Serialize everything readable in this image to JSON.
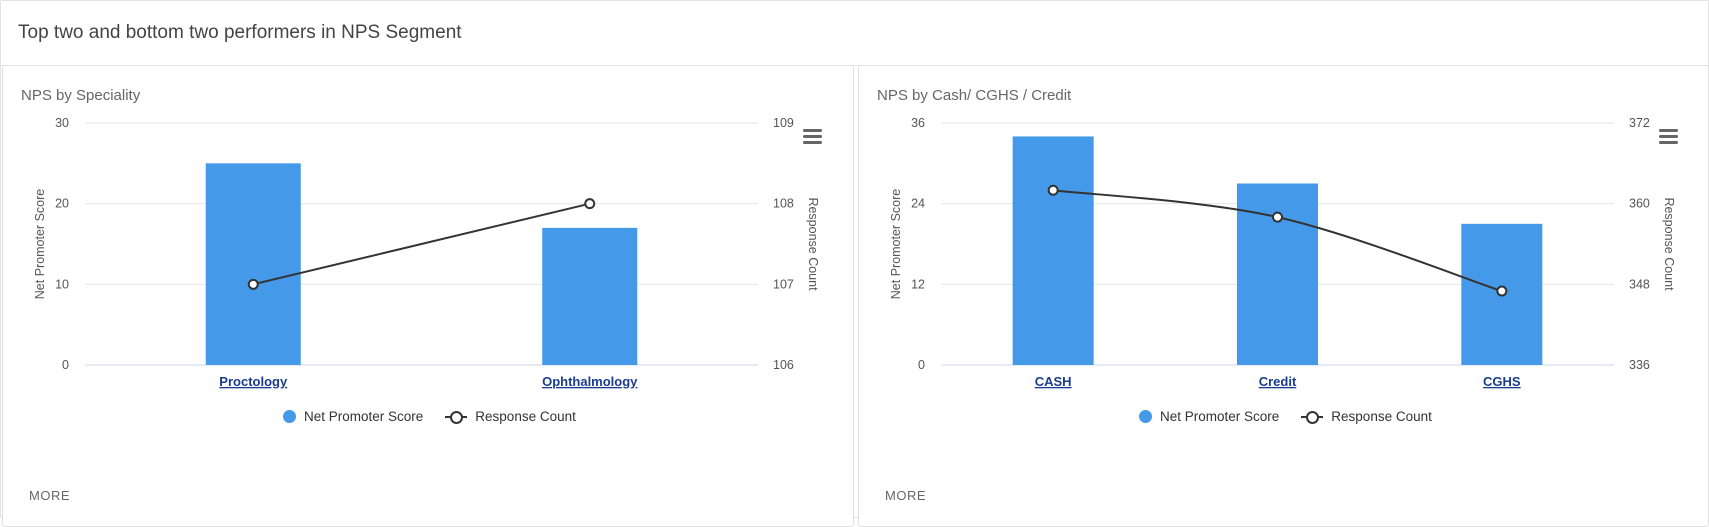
{
  "section_title": "Top two and bottom two performers in NPS Segment",
  "colors": {
    "bar": "#4499e9",
    "line": "#333333",
    "grid": "#e6e6e6",
    "axis_line": "#ccd6eb",
    "category_link": "#1a3c8f"
  },
  "panels": [
    {
      "title": "NPS by Speciality",
      "more_label": "MORE",
      "menu_icon": "hamburger-menu-icon"
    },
    {
      "title": "NPS by Cash/ CGHS / Credit",
      "more_label": "MORE",
      "menu_icon": "hamburger-menu-icon"
    }
  ],
  "chart_data": [
    {
      "type": "bar",
      "categories": [
        "Proctology",
        "Ophthalmology"
      ],
      "series": [
        {
          "name": "Net Promoter Score",
          "type": "bar",
          "axis": "left",
          "values": [
            25,
            17
          ]
        },
        {
          "name": "Response Count",
          "type": "line",
          "axis": "right",
          "values": [
            107,
            108
          ]
        }
      ],
      "ylabel": "Net Promoter Score",
      "ylim": [
        0,
        30
      ],
      "yticks": [
        0,
        10,
        20,
        30
      ],
      "y2label": "Response Count",
      "y2lim": [
        106,
        109
      ],
      "y2ticks": [
        106,
        107,
        108,
        109
      ],
      "grid": true,
      "legend_position": "bottom-center"
    },
    {
      "type": "bar",
      "categories": [
        "CASH",
        "Credit",
        "CGHS"
      ],
      "series": [
        {
          "name": "Net Promoter Score",
          "type": "bar",
          "axis": "left",
          "values": [
            34,
            27,
            21
          ]
        },
        {
          "name": "Response Count",
          "type": "line",
          "axis": "right",
          "values": [
            362,
            358,
            347
          ]
        }
      ],
      "ylabel": "Net Promoter Score",
      "ylim": [
        0,
        36
      ],
      "yticks": [
        0,
        12,
        24,
        36
      ],
      "y2label": "Response Count",
      "y2lim": [
        336,
        372
      ],
      "y2ticks": [
        336,
        348,
        360,
        372
      ],
      "grid": true,
      "legend_position": "bottom-center"
    }
  ]
}
